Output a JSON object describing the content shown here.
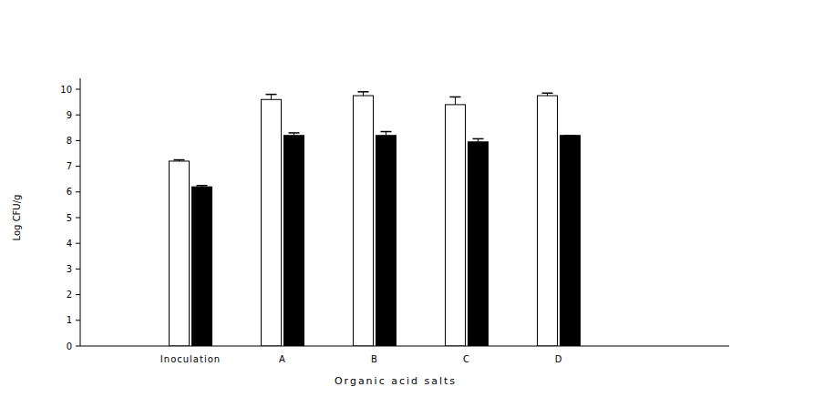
{
  "chart_data": {
    "type": "bar",
    "categories": [
      "Inoculation",
      "A",
      "B",
      "C",
      "D"
    ],
    "x_label": "Organic acid salts",
    "y_label": "Log CFU/g",
    "series": [
      {
        "color": "#ffffff",
        "values": [
          7.2,
          9.6,
          9.75,
          9.4,
          9.75
        ],
        "errors": [
          0.05,
          0.2,
          0.15,
          0.3,
          0.1
        ]
      },
      {
        "color": "#000000",
        "values": [
          6.2,
          8.2,
          8.2,
          7.95,
          8.2
        ],
        "errors": [
          0.05,
          0.1,
          0.15,
          0.12,
          0
        ]
      }
    ],
    "ylim": [
      0,
      10
    ],
    "yticks": [
      0,
      1,
      2,
      3,
      4,
      5,
      6,
      7,
      8,
      9,
      10
    ],
    "grid": false
  }
}
